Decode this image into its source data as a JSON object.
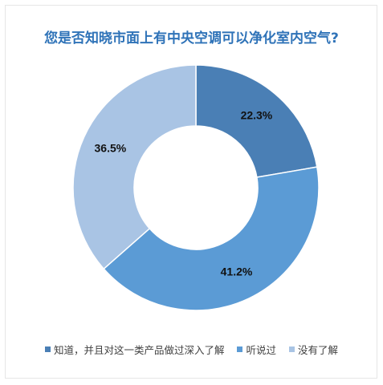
{
  "chart_data": {
    "type": "donut",
    "title": "您是否知晓市面上有中央空调可以净化室内空气?",
    "categories": [
      "知道，并且对这一类产品做过深入了解",
      "听说过",
      "没有了解"
    ],
    "values": [
      22.3,
      41.2,
      36.5
    ],
    "value_labels": [
      "22.3%",
      "41.2%",
      "36.5%"
    ],
    "colors": [
      "#4a7fb5",
      "#5b9bd5",
      "#a9c4e4"
    ],
    "legend_position": "bottom"
  }
}
